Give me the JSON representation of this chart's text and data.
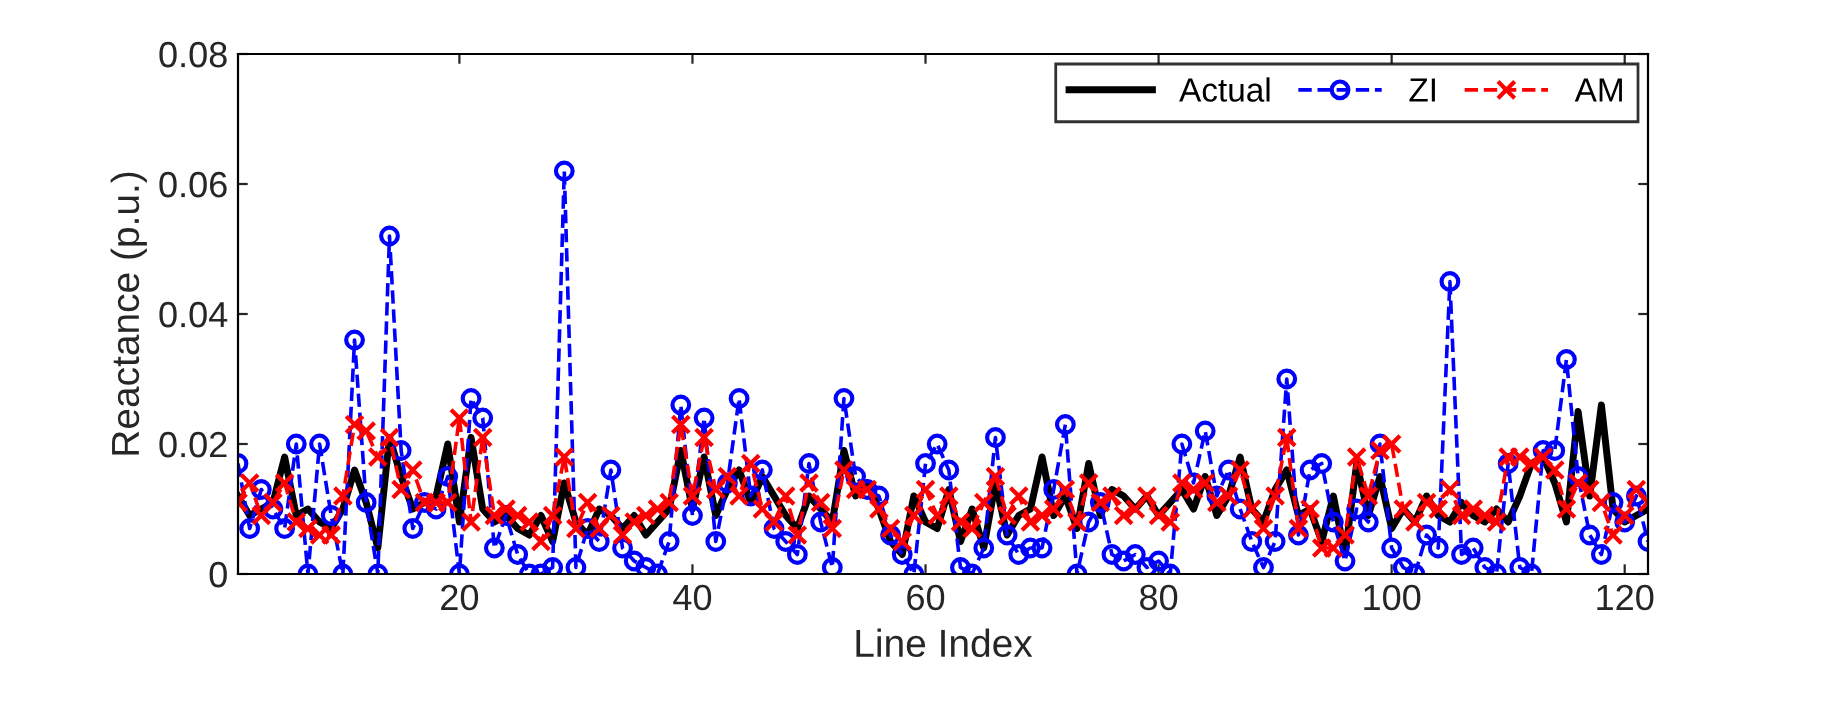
{
  "chart_data": {
    "type": "line",
    "xlabel": "Line Index",
    "ylabel": "Reactance (p.u.)",
    "x": [
      1,
      2,
      3,
      4,
      5,
      6,
      7,
      8,
      9,
      10,
      11,
      12,
      13,
      14,
      15,
      16,
      17,
      18,
      19,
      20,
      21,
      22,
      23,
      24,
      25,
      26,
      27,
      28,
      29,
      30,
      31,
      32,
      33,
      34,
      35,
      36,
      37,
      38,
      39,
      40,
      41,
      42,
      43,
      44,
      45,
      46,
      47,
      48,
      49,
      50,
      51,
      52,
      53,
      54,
      55,
      56,
      57,
      58,
      59,
      60,
      61,
      62,
      63,
      64,
      65,
      66,
      67,
      68,
      69,
      70,
      71,
      72,
      73,
      74,
      75,
      76,
      77,
      78,
      79,
      80,
      81,
      82,
      83,
      84,
      85,
      86,
      87,
      88,
      89,
      90,
      91,
      92,
      93,
      94,
      95,
      96,
      97,
      98,
      99,
      100,
      101,
      102,
      103,
      104,
      105,
      106,
      107,
      108,
      109,
      110,
      111,
      112,
      113,
      114,
      115,
      116,
      117,
      118,
      119,
      120,
      121,
      122
    ],
    "series": [
      {
        "name": "Actual",
        "color": "#000000",
        "line_style": "solid",
        "marker": "none",
        "values": [
          0.012,
          0.009,
          0.01,
          0.011,
          0.018,
          0.009,
          0.01,
          0.008,
          0.007,
          0.01,
          0.016,
          0.011,
          0.004,
          0.021,
          0.015,
          0.01,
          0.011,
          0.012,
          0.02,
          0.008,
          0.021,
          0.01,
          0.008,
          0.009,
          0.007,
          0.006,
          0.009,
          0.005,
          0.014,
          0.008,
          0.006,
          0.01,
          0.009,
          0.007,
          0.009,
          0.006,
          0.008,
          0.01,
          0.019,
          0.01,
          0.018,
          0.009,
          0.013,
          0.016,
          0.011,
          0.015,
          0.012,
          0.009,
          0.007,
          0.012,
          0.01,
          0.008,
          0.019,
          0.012,
          0.014,
          0.01,
          0.005,
          0.003,
          0.012,
          0.008,
          0.007,
          0.013,
          0.005,
          0.01,
          0.004,
          0.014,
          0.006,
          0.009,
          0.01,
          0.018,
          0.009,
          0.012,
          0.007,
          0.017,
          0.009,
          0.013,
          0.012,
          0.01,
          0.012,
          0.009,
          0.011,
          0.013,
          0.01,
          0.015,
          0.009,
          0.012,
          0.018,
          0.01,
          0.008,
          0.013,
          0.016,
          0.009,
          0.01,
          0.005,
          0.012,
          0.003,
          0.017,
          0.009,
          0.015,
          0.007,
          0.01,
          0.008,
          0.012,
          0.009,
          0.008,
          0.011,
          0.009,
          0.008,
          0.01,
          0.008,
          0.012,
          0.017,
          0.018,
          0.014,
          0.008,
          0.025,
          0.012,
          0.026,
          0.01,
          0.008,
          0.009,
          0.01
        ]
      },
      {
        "name": "ZI",
        "color": "#0000ff",
        "line_style": "dashed",
        "marker": "circle",
        "values": [
          0.017,
          0.007,
          0.013,
          0.01,
          0.007,
          0.02,
          0.0,
          0.02,
          0.009,
          0.0,
          0.036,
          0.011,
          0.0,
          0.052,
          0.019,
          0.007,
          0.011,
          0.01,
          0.015,
          0.0,
          0.027,
          0.024,
          0.004,
          0.009,
          0.003,
          0.0,
          0.0,
          0.001,
          0.062,
          0.001,
          0.007,
          0.005,
          0.016,
          0.004,
          0.002,
          0.001,
          0.0,
          0.005,
          0.026,
          0.009,
          0.024,
          0.005,
          0.014,
          0.027,
          0.012,
          0.016,
          0.007,
          0.005,
          0.003,
          0.017,
          0.008,
          0.001,
          0.027,
          0.015,
          0.013,
          0.012,
          0.006,
          0.003,
          0.0,
          0.017,
          0.02,
          0.016,
          0.001,
          0.0,
          0.004,
          0.021,
          0.006,
          0.003,
          0.004,
          0.004,
          0.013,
          0.023,
          0.0,
          0.008,
          0.011,
          0.003,
          0.002,
          0.003,
          0.001,
          0.002,
          0.0,
          0.02,
          0.014,
          0.022,
          0.012,
          0.016,
          0.01,
          0.005,
          0.001,
          0.005,
          0.03,
          0.006,
          0.016,
          0.017,
          0.008,
          0.002,
          0.01,
          0.008,
          0.02,
          0.004,
          0.001,
          0.0,
          0.006,
          0.004,
          0.045,
          0.003,
          0.004,
          0.001,
          0.0,
          0.017,
          0.001,
          0.0,
          0.019,
          0.019,
          0.033,
          0.015,
          0.006,
          0.003,
          0.011,
          0.008,
          0.012,
          0.005
        ]
      },
      {
        "name": "AM",
        "color": "#ff0000",
        "line_style": "dashed",
        "marker": "cross",
        "values": [
          0.011,
          0.014,
          0.009,
          0.011,
          0.014,
          0.008,
          0.007,
          0.006,
          0.006,
          0.012,
          0.023,
          0.022,
          0.018,
          0.021,
          0.013,
          0.016,
          0.011,
          0.011,
          0.011,
          0.024,
          0.008,
          0.021,
          0.009,
          0.01,
          0.009,
          0.008,
          0.005,
          0.009,
          0.018,
          0.007,
          0.011,
          0.007,
          0.009,
          0.006,
          0.008,
          0.009,
          0.01,
          0.011,
          0.023,
          0.012,
          0.021,
          0.013,
          0.015,
          0.012,
          0.017,
          0.01,
          0.008,
          0.012,
          0.006,
          0.014,
          0.011,
          0.007,
          0.016,
          0.013,
          0.013,
          0.01,
          0.007,
          0.005,
          0.009,
          0.013,
          0.009,
          0.012,
          0.008,
          0.007,
          0.011,
          0.015,
          0.009,
          0.012,
          0.008,
          0.009,
          0.01,
          0.013,
          0.008,
          0.014,
          0.011,
          0.012,
          0.009,
          0.01,
          0.012,
          0.009,
          0.008,
          0.014,
          0.013,
          0.014,
          0.011,
          0.012,
          0.016,
          0.01,
          0.007,
          0.012,
          0.021,
          0.007,
          0.01,
          0.004,
          0.004,
          0.006,
          0.018,
          0.012,
          0.019,
          0.02,
          0.01,
          0.008,
          0.011,
          0.01,
          0.013,
          0.009,
          0.01,
          0.009,
          0.008,
          0.018,
          0.018,
          0.017,
          0.018,
          0.016,
          0.01,
          0.014,
          0.013,
          0.011,
          0.006,
          0.009,
          0.013,
          0.011
        ]
      }
    ],
    "xlim": [
      1,
      122
    ],
    "xticks": [
      20,
      40,
      60,
      80,
      100,
      120
    ],
    "ylim": [
      0,
      0.08
    ],
    "yticks": [
      0,
      0.02,
      0.04,
      0.06,
      0.08
    ],
    "legend": "top right"
  }
}
